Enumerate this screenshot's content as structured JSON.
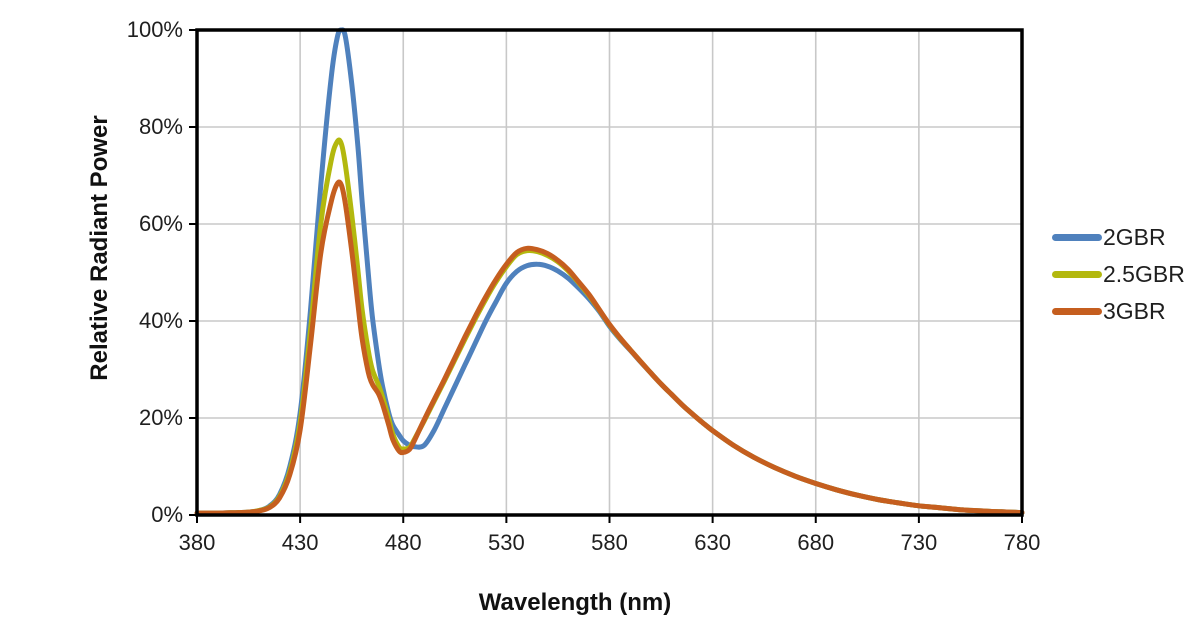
{
  "chart_data": {
    "type": "line",
    "title": "",
    "xlabel": "Wavelength (nm)",
    "ylabel": "Relative Radiant Power",
    "xlim": [
      380,
      780
    ],
    "ylim": [
      0,
      100
    ],
    "x_ticks": [
      380,
      430,
      480,
      530,
      580,
      630,
      680,
      730,
      780
    ],
    "y_ticks": [
      0,
      20,
      40,
      60,
      80,
      100
    ],
    "y_tick_labels": [
      "0%",
      "20%",
      "40%",
      "60%",
      "80%",
      "100%"
    ],
    "grid": true,
    "legend_position": "right",
    "x": [
      380,
      390,
      400,
      405,
      410,
      415,
      420,
      425,
      430,
      435,
      440,
      445,
      448,
      450,
      452,
      455,
      458,
      460,
      463,
      465,
      468,
      470,
      473,
      475,
      478,
      480,
      483,
      485,
      490,
      495,
      500,
      505,
      510,
      515,
      520,
      525,
      530,
      535,
      540,
      545,
      550,
      555,
      560,
      565,
      570,
      575,
      580,
      585,
      590,
      595,
      600,
      605,
      610,
      615,
      620,
      625,
      630,
      640,
      650,
      660,
      670,
      680,
      690,
      700,
      710,
      720,
      730,
      740,
      750,
      760,
      770,
      780
    ],
    "series": [
      {
        "name": "2GBR",
        "color": "#4F81BD",
        "values": [
          0.4,
          0.4,
          0.5,
          0.6,
          0.9,
          1.8,
          4.2,
          10,
          21,
          42,
          68,
          90,
          98.5,
          100,
          98.5,
          89,
          76,
          65,
          50,
          41,
          31.5,
          26.5,
          21,
          18.5,
          16.5,
          15.3,
          14.4,
          14.1,
          14.3,
          17.5,
          22,
          26.5,
          31,
          35.5,
          40,
          44,
          47.8,
          50.2,
          51.4,
          51.7,
          51.3,
          50.3,
          48.8,
          46.8,
          44.6,
          42,
          38.9,
          36.3,
          34,
          31.6,
          29.3,
          27,
          24.9,
          22.8,
          20.9,
          19.1,
          17.4,
          14.4,
          11.9,
          9.8,
          8,
          6.5,
          5.2,
          4.1,
          3.2,
          2.5,
          1.9,
          1.5,
          1.1,
          0.85,
          0.65,
          0.5
        ]
      },
      {
        "name": "2.5GBR",
        "color": "#B3B80E",
        "values": [
          0.4,
          0.4,
          0.5,
          0.6,
          0.9,
          1.6,
          3.8,
          9,
          19,
          38,
          60,
          73,
          77,
          76.5,
          72,
          62,
          50.5,
          42.5,
          34,
          30,
          26.8,
          24.3,
          19.8,
          16.6,
          14.0,
          13.6,
          13.9,
          15.3,
          19.3,
          23.5,
          27.7,
          32,
          36.3,
          40.5,
          44.5,
          48.1,
          51.2,
          53.7,
          54.5,
          54.3,
          53.5,
          52.2,
          50.3,
          47.9,
          45.3,
          42.3,
          39.2,
          36.5,
          34.1,
          31.7,
          29.3,
          27,
          24.9,
          22.8,
          20.9,
          19.1,
          17.4,
          14.4,
          11.9,
          9.8,
          8,
          6.5,
          5.2,
          4.1,
          3.2,
          2.5,
          1.9,
          1.5,
          1.1,
          0.85,
          0.65,
          0.5
        ]
      },
      {
        "name": "3GBR",
        "color": "#C55E1F",
        "values": [
          0.4,
          0.4,
          0.5,
          0.6,
          0.85,
          1.5,
          3.5,
          8.3,
          17.5,
          35,
          54,
          64.5,
          68.3,
          68,
          64,
          54.5,
          43.5,
          36.5,
          29.5,
          27,
          25,
          22.8,
          18.5,
          15.5,
          13.2,
          12.9,
          13.5,
          15,
          19.5,
          23.8,
          28,
          32.4,
          36.8,
          41,
          45,
          48.6,
          51.7,
          54.1,
          55,
          54.7,
          53.9,
          52.5,
          50.6,
          48.1,
          45.5,
          42.4,
          39.3,
          36.6,
          34.1,
          31.7,
          29.3,
          27,
          24.9,
          22.8,
          20.9,
          19.1,
          17.4,
          14.4,
          11.9,
          9.8,
          8,
          6.5,
          5.2,
          4.1,
          3.2,
          2.5,
          1.9,
          1.5,
          1.1,
          0.85,
          0.65,
          0.5
        ]
      }
    ]
  },
  "style": {
    "grid_color": "#C8C8C8",
    "axis_color": "#000000",
    "text_color": "#1f1f1f",
    "background": "#ffffff"
  }
}
